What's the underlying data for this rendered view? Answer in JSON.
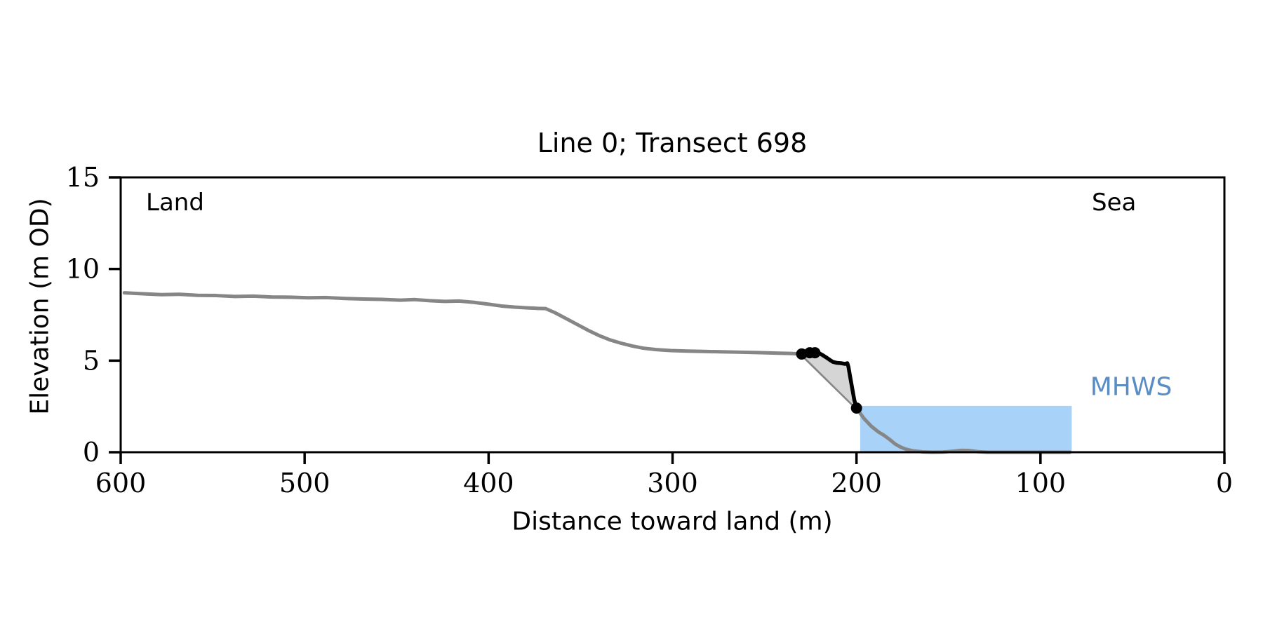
{
  "figure": {
    "title": "Line 0; Transect 698",
    "xlabel": "Distance toward land (m)",
    "ylabel": "Elevation (m OD)",
    "annotations": {
      "land": "Land",
      "sea": "Sea",
      "mhws": "MHWS"
    }
  },
  "chart_data": {
    "type": "line",
    "title": "Line 0; Transect 698",
    "xlabel": "Distance toward land (m)",
    "ylabel": "Elevation (m OD)",
    "xlim": [
      600,
      0
    ],
    "ylim": [
      0,
      15
    ],
    "xticks": [
      600,
      500,
      400,
      300,
      200,
      100,
      0
    ],
    "yticks": [
      0,
      5,
      10,
      15
    ],
    "grid": false,
    "x_axis_reversed": true,
    "annotations": [
      {
        "text": "Land",
        "corner": "top-left"
      },
      {
        "text": "Sea",
        "corner": "top-right"
      },
      {
        "text": "MHWS",
        "position": "right-of-water",
        "color": "#5b8dc5"
      }
    ],
    "water_rect": {
      "label": "MHWS",
      "x_start": 198,
      "x_end": 83,
      "elevation_top": 2.53,
      "elevation_bottom": 0,
      "color": "#a8d2f8"
    },
    "wedge_color": "#d5d5d5",
    "colors": {
      "terrain": "#868686",
      "highlight": "#000000",
      "mhws_label": "#5b8dc5",
      "water": "#a8d2f8"
    },
    "series": [
      {
        "name": "terrain-profile",
        "color": "#868686",
        "width": 5,
        "points": [
          [
            598,
            8.7
          ],
          [
            588,
            8.65
          ],
          [
            578,
            8.6
          ],
          [
            568,
            8.62
          ],
          [
            558,
            8.56
          ],
          [
            548,
            8.55
          ],
          [
            538,
            8.5
          ],
          [
            528,
            8.52
          ],
          [
            518,
            8.47
          ],
          [
            508,
            8.46
          ],
          [
            498,
            8.43
          ],
          [
            488,
            8.44
          ],
          [
            478,
            8.39
          ],
          [
            468,
            8.36
          ],
          [
            458,
            8.34
          ],
          [
            448,
            8.3
          ],
          [
            440,
            8.33
          ],
          [
            432,
            8.27
          ],
          [
            424,
            8.23
          ],
          [
            416,
            8.25
          ],
          [
            408,
            8.18
          ],
          [
            400,
            8.08
          ],
          [
            393,
            7.98
          ],
          [
            386,
            7.92
          ],
          [
            379,
            7.88
          ],
          [
            373,
            7.85
          ],
          [
            369,
            7.84
          ],
          [
            364,
            7.62
          ],
          [
            358,
            7.3
          ],
          [
            352,
            6.98
          ],
          [
            346,
            6.66
          ],
          [
            340,
            6.37
          ],
          [
            334,
            6.13
          ],
          [
            328,
            5.95
          ],
          [
            322,
            5.8
          ],
          [
            316,
            5.68
          ],
          [
            309,
            5.6
          ],
          [
            301,
            5.55
          ],
          [
            292,
            5.52
          ],
          [
            283,
            5.5
          ],
          [
            274,
            5.48
          ],
          [
            264,
            5.46
          ],
          [
            254,
            5.44
          ],
          [
            244,
            5.41
          ],
          [
            236,
            5.39
          ],
          [
            230,
            5.36
          ],
          [
            200,
            2.41
          ],
          [
            196,
            1.85
          ],
          [
            192,
            1.42
          ],
          [
            188,
            1.1
          ],
          [
            185,
            0.92
          ],
          [
            182,
            0.7
          ],
          [
            179,
            0.45
          ],
          [
            176,
            0.28
          ],
          [
            173,
            0.16
          ],
          [
            169,
            0.07
          ],
          [
            164,
            0.02
          ],
          [
            159,
            0.0
          ],
          [
            153,
            0.01
          ],
          [
            148,
            0.05
          ],
          [
            143,
            0.1
          ],
          [
            139,
            0.09
          ],
          [
            134,
            0.03
          ],
          [
            129,
            0.0
          ],
          [
            120,
            0.0
          ],
          [
            110,
            0.0
          ],
          [
            100,
            0.0
          ],
          [
            90,
            0.0
          ],
          [
            84,
            0.0
          ]
        ]
      },
      {
        "name": "active-cliff-segment",
        "color": "#000000",
        "width": 5.5,
        "points": [
          [
            229.8,
            5.36
          ],
          [
            227.6,
            5.4
          ],
          [
            225.2,
            5.43
          ],
          [
            222.8,
            5.44
          ],
          [
            220.8,
            5.43
          ],
          [
            218.6,
            5.31
          ],
          [
            216.4,
            5.17
          ],
          [
            214.4,
            5.03
          ],
          [
            212.8,
            4.93
          ],
          [
            210.8,
            4.88
          ],
          [
            208.4,
            4.86
          ],
          [
            206.2,
            4.82
          ],
          [
            205.0,
            4.86
          ],
          [
            204.4,
            4.67
          ],
          [
            203.6,
            4.2
          ],
          [
            202.8,
            3.75
          ],
          [
            202.0,
            3.3
          ],
          [
            201.2,
            2.85
          ],
          [
            200.4,
            2.55
          ],
          [
            200.0,
            2.41
          ]
        ],
        "markers": [
          [
            229.8,
            5.36
          ],
          [
            225.4,
            5.43
          ],
          [
            222.6,
            5.43
          ],
          [
            200.0,
            2.41
          ]
        ],
        "marker_radius": 8
      }
    ]
  }
}
